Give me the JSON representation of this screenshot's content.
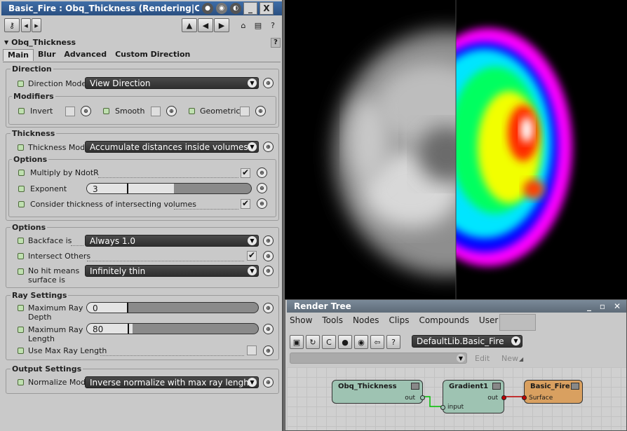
{
  "window": {
    "title": "Basic_Fire : Obq_Thickness (Rendering|Custom...",
    "minimize_label": "_",
    "close_label": "X"
  },
  "property": {
    "title": "Obq_Thickness",
    "tabs": [
      "Main",
      "Blur",
      "Advanced",
      "Custom Direction"
    ]
  },
  "direction": {
    "group_title": "Direction",
    "mode_label": "Direction Mode",
    "mode_value": "View Direction",
    "modifiers_title": "Modifiers",
    "invert_label": "Invert",
    "invert_checked": false,
    "smooth_label": "Smooth",
    "smooth_checked": false,
    "geometric_label": "Geometric",
    "geometric_checked": false
  },
  "thickness": {
    "group_title": "Thickness",
    "mode_label": "Thickness Mode",
    "mode_value": "Accumulate distances inside volumes",
    "options_title": "Options",
    "multiply_label": "Multiply by NdotR",
    "multiply_checked": true,
    "exponent_label": "Exponent",
    "exponent_value": "3",
    "consider_label": "Consider thickness of intersecting volumes",
    "consider_checked": true
  },
  "options": {
    "group_title": "Options",
    "backface_label": "Backface is",
    "backface_value": "Always 1.0",
    "intersect_label": "Intersect Others",
    "intersect_checked": true,
    "nohit_label_1": "No hit means",
    "nohit_label_2": "surface is",
    "nohit_value": "Infinitely thin"
  },
  "ray": {
    "group_title": "Ray Settings",
    "maxdepth_label_1": "Maximum Ray",
    "maxdepth_label_2": "Depth",
    "maxdepth_value": "0",
    "maxlength_label_1": "Maximum Ray",
    "maxlength_label_2": "Length",
    "maxlength_value": "80",
    "usemax_label": "Use Max Ray Length",
    "usemax_checked": false
  },
  "output": {
    "group_title": "Output Settings",
    "normalize_label": "Normalize Mode",
    "normalize_value": "Inverse normalize with max ray lenght"
  },
  "render_tree": {
    "title": "Render Tree",
    "menu": [
      "Show",
      "Tools",
      "Nodes",
      "Clips",
      "Compounds",
      "User Tools"
    ],
    "library_value": "DefaultLib.Basic_Fire",
    "edit_label": "Edit",
    "new_label": "New",
    "nodes": {
      "thickness": {
        "title": "Obq_Thickness",
        "out": "out",
        "color": "#9ec3b2"
      },
      "gradient": {
        "title": "Gradient1",
        "in": "input",
        "out": "out",
        "color": "#9ec3b2"
      },
      "fire": {
        "title": "Basic_Fire",
        "in": "Surface",
        "color": "#d9a060"
      }
    }
  }
}
